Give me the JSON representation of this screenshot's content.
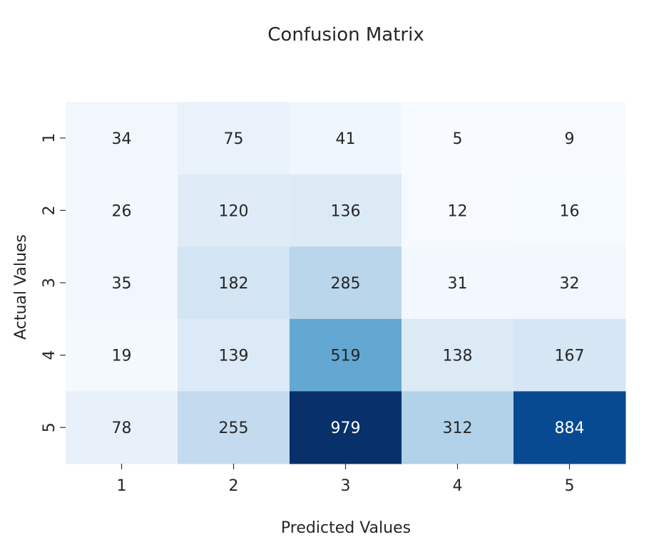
{
  "chart_data": {
    "type": "heatmap",
    "title": "Confusion Matrix",
    "xlabel": "Predicted Values",
    "ylabel": "Actual Values",
    "x_categories": [
      "1",
      "2",
      "3",
      "4",
      "5"
    ],
    "y_categories": [
      "1",
      "2",
      "3",
      "4",
      "5"
    ],
    "values": [
      [
        34,
        75,
        41,
        5,
        9
      ],
      [
        26,
        120,
        136,
        12,
        16
      ],
      [
        35,
        182,
        285,
        31,
        32
      ],
      [
        19,
        139,
        519,
        138,
        167
      ],
      [
        78,
        255,
        979,
        312,
        884
      ]
    ],
    "colormap": "Blues",
    "value_range": [
      5,
      979
    ],
    "colorbar": false
  }
}
